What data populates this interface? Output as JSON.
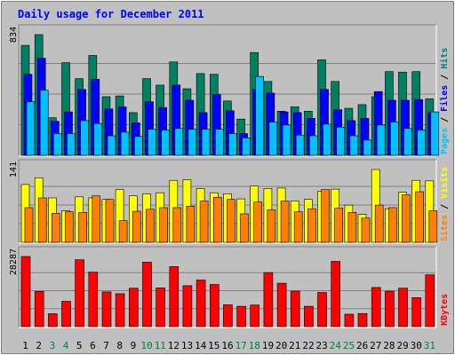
{
  "chart_data": {
    "type": "bar",
    "title": "Daily usage for December 2011",
    "categories": [
      "1",
      "2",
      "3",
      "4",
      "5",
      "6",
      "7",
      "8",
      "9",
      "10",
      "11",
      "12",
      "13",
      "14",
      "15",
      "16",
      "17",
      "18",
      "19",
      "20",
      "21",
      "22",
      "23",
      "24",
      "25",
      "26",
      "27",
      "28",
      "29",
      "30",
      "31"
    ],
    "weekend_days": [
      "3",
      "4",
      "10",
      "11",
      "17",
      "18",
      "24",
      "25",
      "31"
    ],
    "panels": [
      {
        "id": "hits",
        "max_label": "834",
        "ymax": 834,
        "legend": [
          {
            "name": "Pages",
            "color": "#00c0ff"
          },
          {
            "name": "Files",
            "color": "#0000ff"
          },
          {
            "name": "Hits",
            "color": "#008080"
          }
        ],
        "series": [
          {
            "name": "Hits",
            "color": "#008060",
            "values": [
              760,
              834,
              260,
              640,
              530,
              690,
              405,
              410,
              295,
              530,
              485,
              645,
              460,
              565,
              560,
              375,
              250,
              710,
              510,
              305,
              335,
              305,
              660,
              510,
              325,
              350,
              405,
              578,
              575,
              578,
              390
            ]
          },
          {
            "name": "Files",
            "color": "#0000ff",
            "values": [
              560,
              670,
              235,
              300,
              455,
              525,
              320,
              335,
              225,
              370,
              330,
              485,
              380,
              295,
              420,
              308,
              150,
              455,
              430,
              300,
              295,
              255,
              455,
              315,
              240,
              255,
              440,
              380,
              380,
              385,
              295
            ]
          },
          {
            "name": "Pages",
            "color": "#00c0ff",
            "values": [
              370,
              450,
              150,
              150,
              240,
              220,
              135,
              160,
              130,
              180,
              175,
              185,
              180,
              180,
              180,
              150,
              120,
              545,
              230,
              210,
              140,
              135,
              215,
              195,
              135,
              105,
              210,
              230,
              185,
              175,
              300
            ]
          }
        ]
      },
      {
        "id": "visits",
        "max_label": "141",
        "ymax": 141,
        "legend": [
          {
            "name": "Sites",
            "color": "#ff8000"
          },
          {
            "name": "Visits",
            "color": "#ffff00"
          }
        ],
        "series": [
          {
            "name": "Visits",
            "color": "#ffff00",
            "values": [
              112,
              125,
              86,
              61,
              88,
              86,
              83,
              102,
              90,
              94,
              96,
              120,
              121,
              104,
              96,
              94,
              84,
              109,
              104,
              105,
              80,
              83,
              99,
              103,
              72,
              54,
              141,
              65,
              97,
              120,
              119
            ]
          },
          {
            "name": "Sites",
            "color": "#ff8000",
            "values": [
              67,
              86,
              56,
              59,
              58,
              90,
              83,
              42,
              60,
              64,
              67,
              67,
              70,
              80,
              87,
              83,
              55,
              78,
              63,
              80,
              59,
              65,
              102,
              66,
              58,
              47,
              72,
              67,
              92,
              98,
              61
            ]
          }
        ]
      },
      {
        "id": "kbytes",
        "max_label": "28287",
        "ymax": 28287,
        "legend": [
          {
            "name": "KBytes",
            "color": "#ff0000"
          }
        ],
        "series": [
          {
            "name": "KBytes",
            "color": "#ff0000",
            "values": [
              28287,
              14200,
              5200,
              10200,
              27000,
              22000,
              14000,
              13300,
              15500,
              26000,
              15600,
              24200,
              16500,
              18800,
              17000,
              8800,
              8200,
              8700,
              21800,
              17500,
              14300,
              8200,
              13800,
              26300,
              5000,
              5300,
              15800,
              14300,
              15500,
              11700,
              20900
            ]
          }
        ]
      }
    ],
    "grid": true,
    "legend_placement": "right, vertical"
  }
}
